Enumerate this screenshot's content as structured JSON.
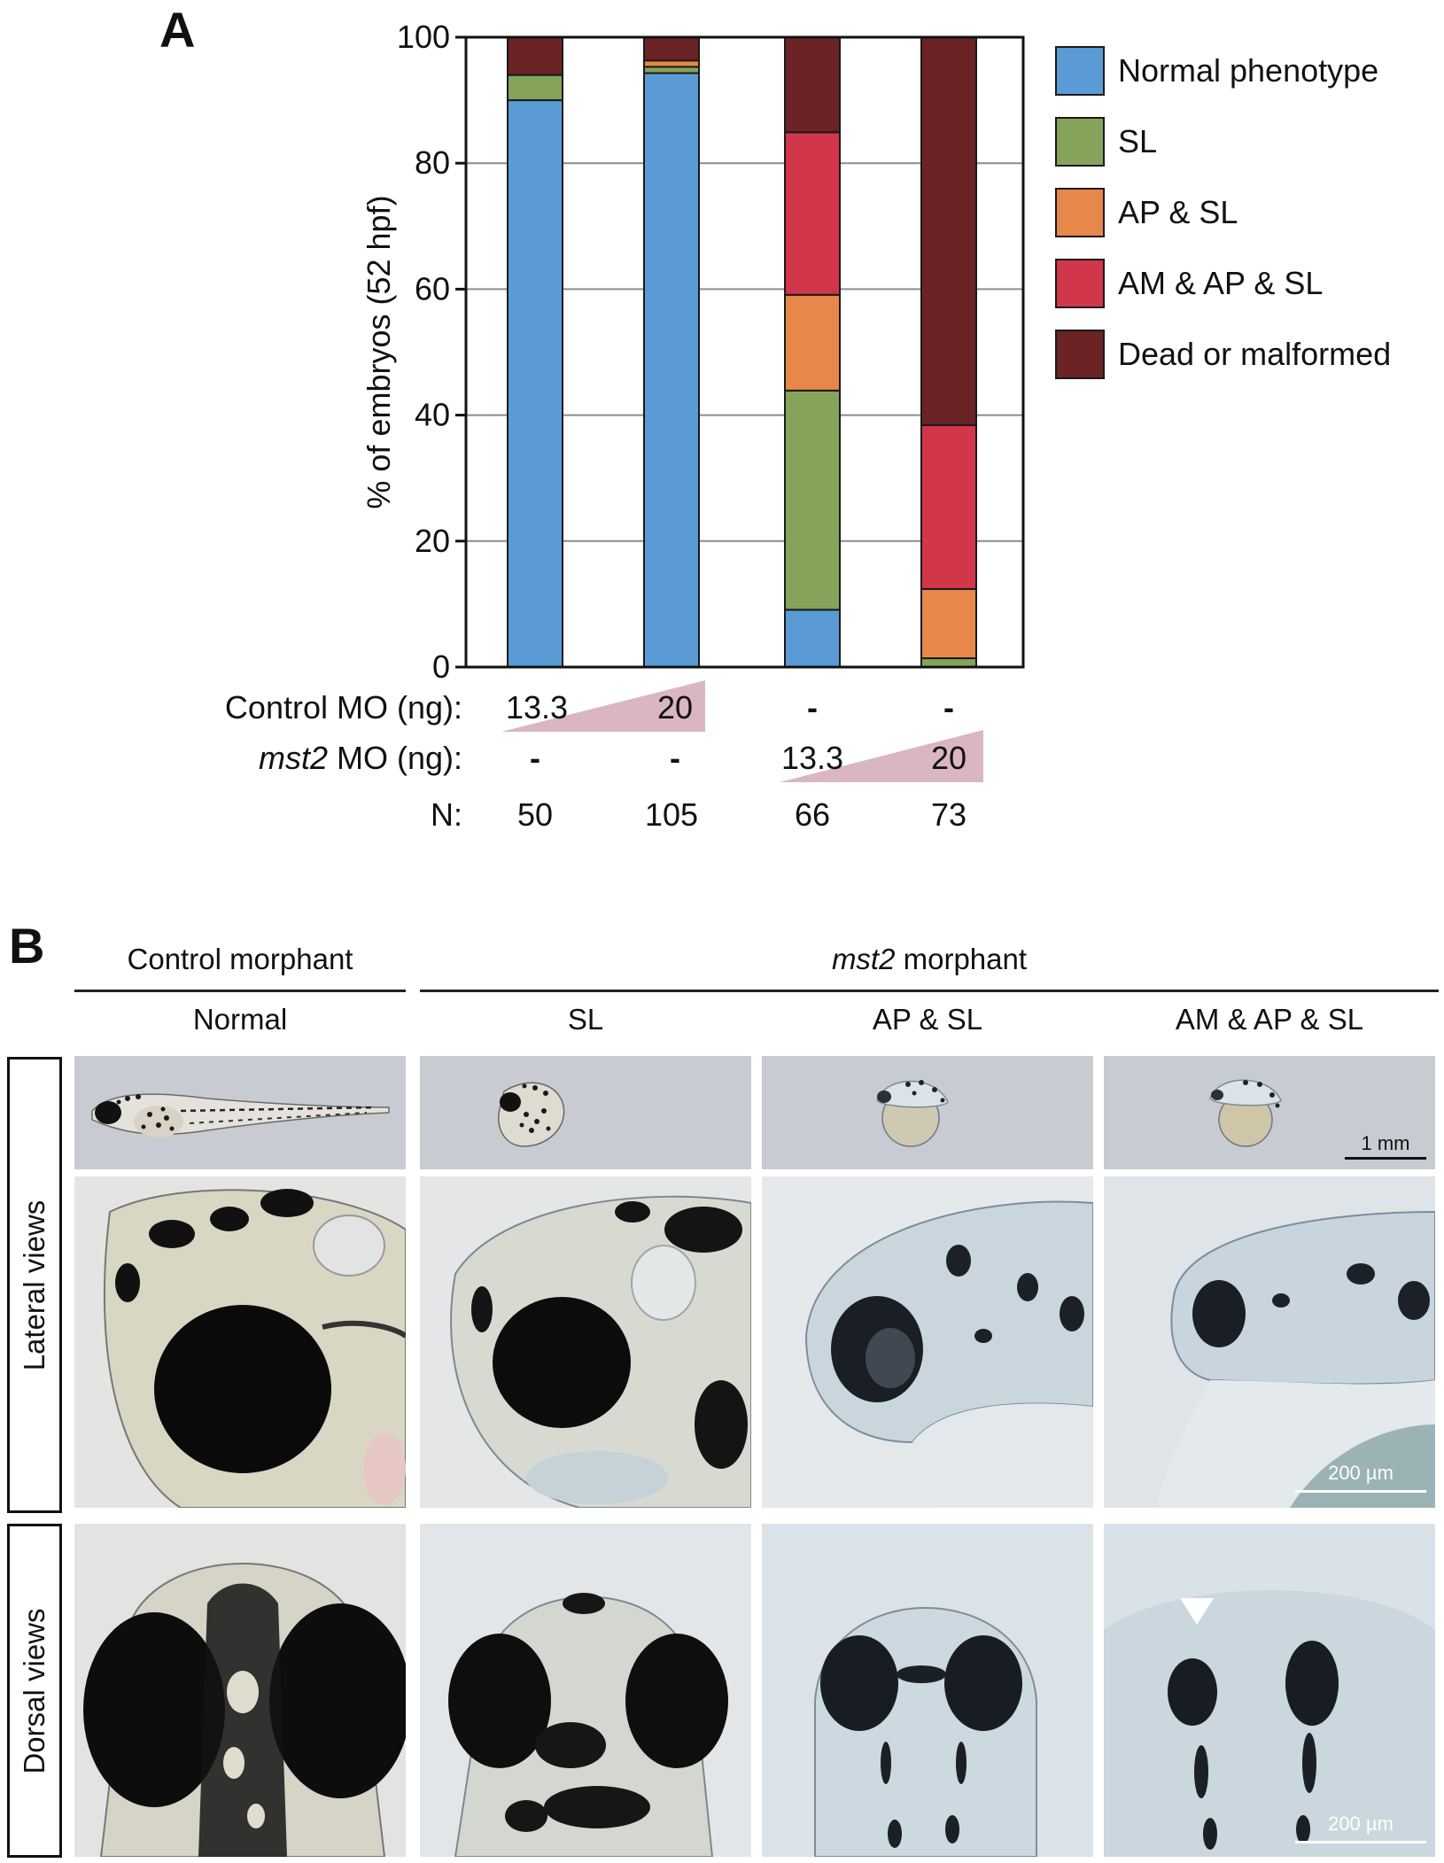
{
  "panel_a": {
    "letter": "A",
    "row_labels": {
      "control": {
        "prefix": "Control MO (ng):",
        "italic": "",
        "suffix": ""
      },
      "mst2": {
        "prefix": "",
        "italic": "mst2",
        "suffix": " MO (ng):"
      },
      "n": "N:"
    },
    "control_doses": [
      "13.3",
      "20",
      "-",
      "-"
    ],
    "mst2_doses": [
      "-",
      "-",
      "13.3",
      "20"
    ],
    "n_values": [
      "50",
      "105",
      "66",
      "73"
    ],
    "wedge_color": "#d9b6c2"
  },
  "chart_data": {
    "type": "bar",
    "stacked": true,
    "categories": [
      "13.3 ng Control MO",
      "20 ng Control MO",
      "13.3 ng mst2 MO",
      "20 ng mst2 MO"
    ],
    "ylabel": "% of embryos (52 hpf)",
    "xlabel": "",
    "ylim": [
      0,
      100
    ],
    "yticks": [
      0,
      20,
      40,
      60,
      80,
      100
    ],
    "grid": true,
    "legend_position": "right",
    "series": [
      {
        "name": "Normal phenotype",
        "color": "#5b9bd5",
        "values": [
          90,
          94.3,
          9.1,
          0
        ]
      },
      {
        "name": "SL",
        "color": "#85a35a",
        "values": [
          4,
          1,
          34.8,
          1.4
        ]
      },
      {
        "name": "AP & SL",
        "color": "#e8874a",
        "values": [
          0,
          1,
          15.2,
          11
        ]
      },
      {
        "name": "AM & AP & SL",
        "color": "#d2364a",
        "values": [
          0,
          0,
          25.8,
          26
        ]
      },
      {
        "name": "Dead or malformed",
        "color": "#6b2326",
        "values": [
          6,
          3.7,
          15.1,
          61.6
        ]
      }
    ]
  },
  "panel_b": {
    "letter": "B",
    "group_control": "Control morphant",
    "group_mst2": {
      "italic": "mst2",
      "rest": " morphant"
    },
    "columns": [
      "Normal",
      "SL",
      "AP & SL",
      "AM & AP & SL"
    ],
    "rows": [
      "Lateral views",
      "Dorsal views"
    ],
    "scalebar_whole": "1 mm",
    "scalebar_lateral": "200 µm",
    "scalebar_dorsal": "200 µm"
  }
}
